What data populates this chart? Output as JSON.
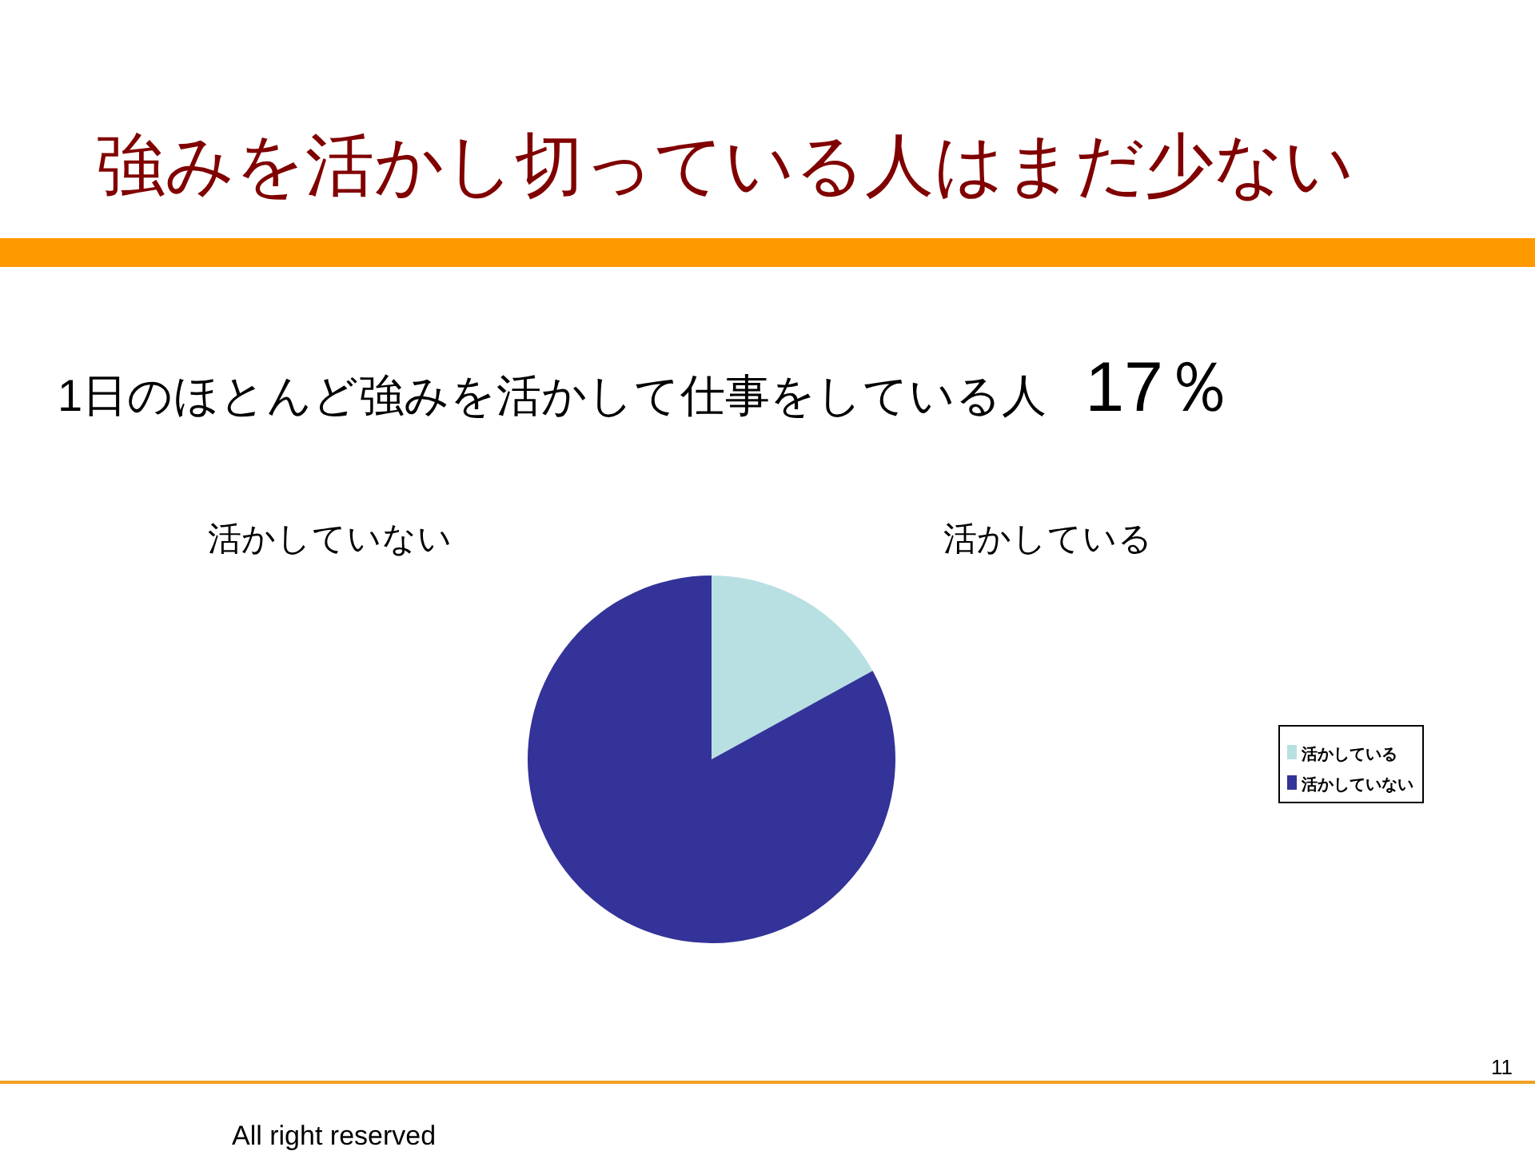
{
  "chart_data": {
    "type": "pie",
    "title": "強みを活かし切っている人はまだ少ない",
    "subtitle": "1日のほとんど強みを活かして仕事をしている人　17％",
    "categories": [
      "活かしている",
      "活かしていない"
    ],
    "values": [
      17,
      83
    ],
    "colors": [
      "#b8e0e3",
      "#333399"
    ],
    "legend": "right",
    "annotations": [
      "11",
      "All right reserved"
    ]
  }
}
